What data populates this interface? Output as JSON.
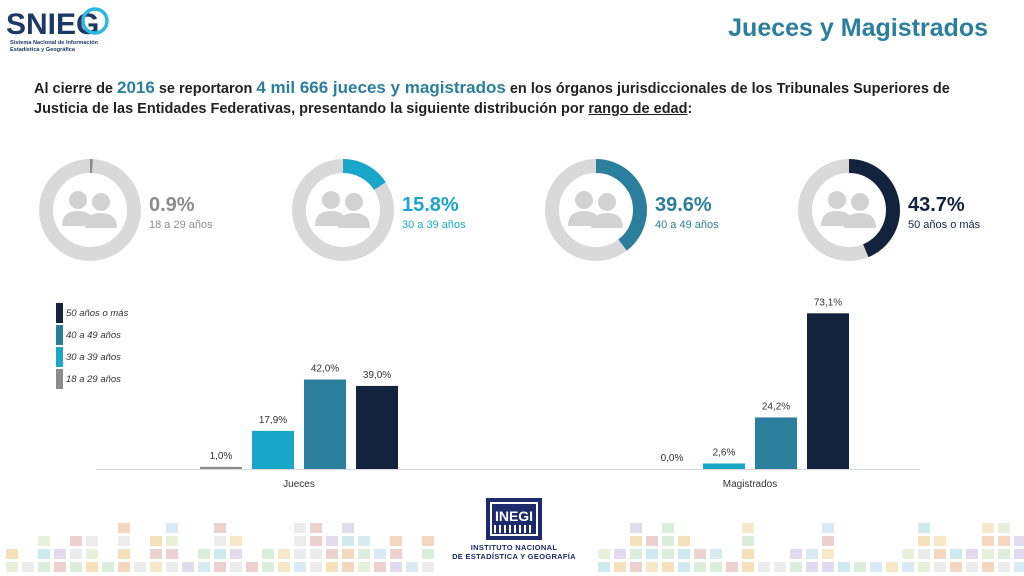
{
  "header": {
    "logo_text": "SNIEG",
    "logo_subtitle_line1": "Sistema Nacional de Información",
    "logo_subtitle_line2": "Estadística y Geográfica",
    "title": "Jueces y Magistrados"
  },
  "description": {
    "p1": "Al cierre de ",
    "year": "2016",
    "p2": " se reportaron ",
    "total": "4 mil 666 jueces y magistrados",
    "p3": " en los órganos jurisdiccionales de los Tribunales Superiores de Justicia de las Entidades Federativas, presentando la siguiente distribución por ",
    "emph": "rango de edad",
    "p4": ":"
  },
  "donuts": [
    {
      "pct_label": "0.9%",
      "value": 0.9,
      "range": "18 a 29 años",
      "color": "#8c8c8c"
    },
    {
      "pct_label": "15.8%",
      "value": 15.8,
      "range": "30 a 39 años",
      "color": "#1aa6c9"
    },
    {
      "pct_label": "39.6%",
      "value": 39.6,
      "range": "40 a 49 años",
      "color": "#2b7f9c"
    },
    {
      "pct_label": "43.7%",
      "value": 43.7,
      "range": "50 años o más",
      "color": "#14233d"
    }
  ],
  "chart_data": {
    "type": "bar",
    "categories": [
      "Jueces",
      "Magistrados"
    ],
    "series": [
      {
        "name": "18 a 29 años",
        "values": [
          1.0,
          0.0
        ],
        "labels": [
          "1,0%",
          "0,0%"
        ],
        "color": "#8c8c8c"
      },
      {
        "name": "30 a 39 años",
        "values": [
          17.9,
          2.6
        ],
        "labels": [
          "17,9%",
          "2,6%"
        ],
        "color": "#1aa6c9"
      },
      {
        "name": "40 a 49 años",
        "values": [
          42.0,
          24.2
        ],
        "labels": [
          "42,0%",
          "24,2%"
        ],
        "color": "#2b7f9c"
      },
      {
        "name": "50 años o más",
        "values": [
          39.0,
          73.1
        ],
        "labels": [
          "39,0%",
          "73,1%"
        ],
        "color": "#14233d"
      }
    ],
    "legend_order": [
      "50 años o más",
      "40 a 49 años",
      "30 a 39 años",
      "18 a 29 años"
    ],
    "ylim": [
      0,
      80
    ],
    "grid": false,
    "legend_position": "top-left"
  },
  "footer": {
    "org_logo": "INEGI",
    "org_line1": "INSTITUTO NACIONAL",
    "org_line2": "DE ESTADÍSTICA Y GEOGRAFÍA"
  }
}
